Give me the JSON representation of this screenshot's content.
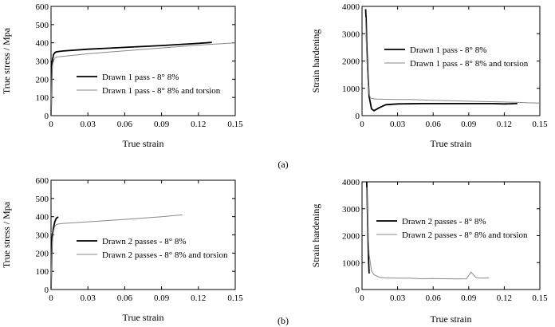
{
  "figure": {
    "panel_labels": [
      "(a)",
      "(b)"
    ]
  },
  "chart_data": [
    {
      "type": "line",
      "xlabel": "True strain",
      "ylabel": "True stress / Mpa",
      "xlim": [
        0,
        0.15
      ],
      "ylim": [
        0,
        600
      ],
      "x_ticks": [
        "0",
        "0.03",
        "0.06",
        "0.09",
        "0.12",
        "0.15"
      ],
      "y_ticks": [
        "0",
        "100",
        "200",
        "300",
        "400",
        "500",
        "600"
      ],
      "legend_position": "center-right",
      "series": [
        {
          "name": "Drawn 1 pass - 8° 8%",
          "color": "#000000",
          "width": 1.8,
          "x": [
            0.0,
            0.0005,
            0.001,
            0.002,
            0.003,
            0.004,
            0.006,
            0.01,
            0.03,
            0.06,
            0.09,
            0.12,
            0.131
          ],
          "y": [
            0,
            200,
            300,
            335,
            345,
            350,
            352,
            355,
            365,
            375,
            385,
            397,
            402
          ]
        },
        {
          "name": "Drawn 1 pass - 8° 8% and torsion",
          "color": "#888888",
          "width": 1.0,
          "x": [
            0.0,
            0.0005,
            0.001,
            0.002,
            0.003,
            0.004,
            0.006,
            0.01,
            0.03,
            0.06,
            0.09,
            0.12,
            0.15
          ],
          "y": [
            0,
            180,
            270,
            305,
            315,
            320,
            323,
            326,
            340,
            356,
            372,
            387,
            400
          ]
        }
      ]
    },
    {
      "type": "line",
      "xlabel": "True strain",
      "ylabel": "Strain hardening",
      "xlim": [
        0,
        0.15
      ],
      "ylim": [
        0,
        4000
      ],
      "x_ticks": [
        "0",
        "0.03",
        "0.06",
        "0.09",
        "0.12",
        "0.15"
      ],
      "y_ticks": [
        "0",
        "1000",
        "2000",
        "3000",
        "4000"
      ],
      "legend_position": "center-right",
      "series": [
        {
          "name": "Drawn 1 pass - 8° 8%",
          "color": "#000000",
          "width": 1.8,
          "x": [
            0.003,
            0.0035,
            0.004,
            0.005,
            0.006,
            0.008,
            0.01,
            0.015,
            0.02,
            0.03,
            0.05,
            0.07,
            0.09,
            0.11,
            0.12,
            0.13,
            0.131
          ],
          "y": [
            3900,
            3500,
            2600,
            1500,
            700,
            250,
            180,
            300,
            400,
            430,
            440,
            440,
            440,
            440,
            430,
            440,
            450
          ]
        },
        {
          "name": "Drawn 1 pass - 8° 8% and torsion",
          "color": "#888888",
          "width": 1.0,
          "x": [
            0.003,
            0.004,
            0.005,
            0.006,
            0.007,
            0.009,
            0.012,
            0.02,
            0.03,
            0.04,
            0.06,
            0.08,
            0.1,
            0.12,
            0.13,
            0.14,
            0.15
          ],
          "y": [
            3600,
            2200,
            1300,
            800,
            650,
            620,
            610,
            600,
            590,
            590,
            560,
            540,
            520,
            500,
            490,
            470,
            460
          ]
        }
      ]
    },
    {
      "type": "line",
      "xlabel": "True strain",
      "ylabel": "True stress / Mpa",
      "xlim": [
        0,
        0.15
      ],
      "ylim": [
        0,
        600
      ],
      "x_ticks": [
        "0",
        "0.03",
        "0.06",
        "0.09",
        "0.12",
        "0.15"
      ],
      "y_ticks": [
        "0",
        "100",
        "200",
        "300",
        "400",
        "500",
        "600"
      ],
      "legend_position": "center-right",
      "series": [
        {
          "name": "Drawn 2 passes - 8° 8%",
          "color": "#000000",
          "width": 1.8,
          "x": [
            0.0,
            0.0005,
            0.001,
            0.002,
            0.003,
            0.004,
            0.005,
            0.006
          ],
          "y": [
            0,
            180,
            290,
            340,
            370,
            388,
            395,
            398
          ]
        },
        {
          "name": "Drawn 2 passes - 8° 8% and torsion",
          "color": "#888888",
          "width": 1.0,
          "x": [
            0.0,
            0.0005,
            0.001,
            0.002,
            0.003,
            0.004,
            0.006,
            0.01,
            0.03,
            0.06,
            0.09,
            0.107
          ],
          "y": [
            0,
            170,
            260,
            320,
            345,
            355,
            360,
            363,
            372,
            385,
            400,
            410
          ]
        }
      ]
    },
    {
      "type": "line",
      "xlabel": "True strain",
      "ylabel": "Strain hardening",
      "xlim": [
        0,
        0.15
      ],
      "ylim": [
        0,
        4000
      ],
      "x_ticks": [
        "0",
        "0.03",
        "0.06",
        "0.09",
        "0.12",
        "0.15"
      ],
      "y_ticks": [
        "0",
        "1000",
        "2000",
        "3000",
        "4000"
      ],
      "legend_position": "center-right",
      "series": [
        {
          "name": "Drawn 2 passes - 8° 8%",
          "color": "#000000",
          "width": 1.8,
          "x": [
            0.004,
            0.0045,
            0.005,
            0.0055,
            0.006
          ],
          "y": [
            4000,
            3000,
            2000,
            1100,
            600
          ]
        },
        {
          "name": "Drawn 2 passes - 8° 8% and torsion",
          "color": "#888888",
          "width": 1.0,
          "x": [
            0.004,
            0.005,
            0.006,
            0.008,
            0.01,
            0.015,
            0.02,
            0.03,
            0.04,
            0.05,
            0.06,
            0.07,
            0.08,
            0.088,
            0.092,
            0.096,
            0.1,
            0.107
          ],
          "y": [
            3800,
            2200,
            1300,
            700,
            550,
            450,
            430,
            420,
            420,
            400,
            410,
            400,
            390,
            400,
            650,
            450,
            420,
            430
          ]
        }
      ]
    }
  ]
}
